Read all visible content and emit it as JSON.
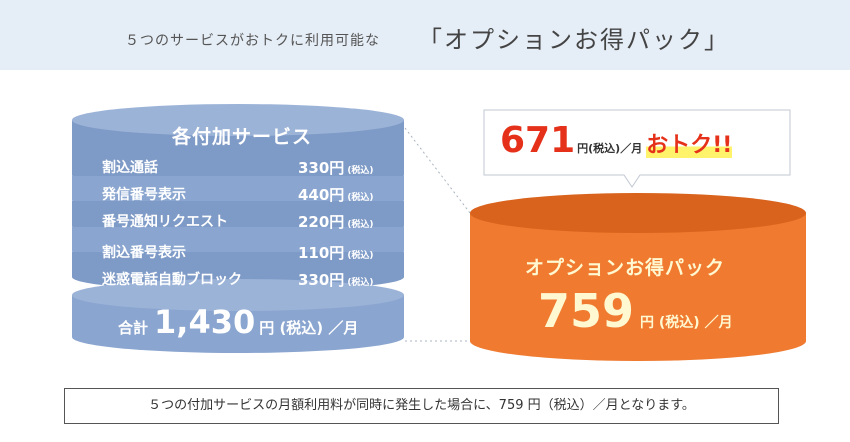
{
  "header": {
    "intro": "５つのサービスがおトクに利用可能な",
    "title": "「オプションお得パック」"
  },
  "individual": {
    "title": "各付加サービス",
    "services": [
      {
        "name": "割込通話",
        "price": "330円",
        "tax": "(税込)"
      },
      {
        "name": "発信番号表示",
        "price": "440円",
        "tax": "(税込)"
      },
      {
        "name": "番号通知リクエスト",
        "price": "220円",
        "tax": "(税込)"
      },
      {
        "name": "割込番号表示",
        "price": "110円",
        "tax": "(税込)"
      },
      {
        "name": "迷惑電話自動ブロック",
        "price": "330円",
        "tax": "(税込)"
      }
    ],
    "total_label": "合計",
    "total_value": "1,430",
    "total_unit": "円 (税込) ／月"
  },
  "pack": {
    "title": "オプションお得パック",
    "price": "759",
    "unit": "円 (税込) ／月"
  },
  "savings": {
    "value": "671",
    "unit": "円(税込)／月",
    "label": "おトク!!"
  },
  "note": "５つの付加サービスの月額利用料が同時に発生した場合に、759 円（税込）／月となります。",
  "colors": {
    "header_bg": "#e5edf6",
    "blue_cylinder": "#8aa5cf",
    "orange_cylinder": "#ef7a30",
    "accent_red": "#e5311a",
    "highlight_yellow": "#fff36b"
  }
}
